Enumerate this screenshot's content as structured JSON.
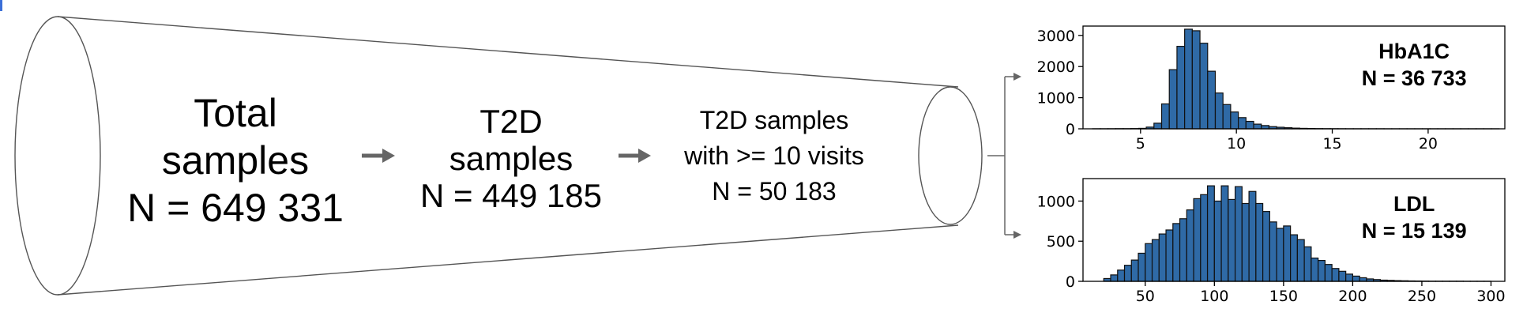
{
  "funnel": {
    "stage1": [
      "Total",
      "samples",
      "N = 649 331"
    ],
    "stage2": [
      "T2D",
      "samples",
      "N = 449 185"
    ],
    "stage3": [
      "T2D samples",
      "with >= 10 visits",
      "N = 50 183"
    ]
  },
  "colors": {
    "bar": "#2f6aa6",
    "arrow": "#666666",
    "outline": "#555555"
  },
  "chart_data": [
    {
      "type": "bar",
      "title": "HbA1C",
      "annotation": "N = 36 733",
      "xlim": [
        2,
        24
      ],
      "ylim": [
        0,
        3300
      ],
      "xticks": [
        5,
        10,
        15,
        20
      ],
      "yticks": [
        0,
        1000,
        2000,
        3000
      ],
      "bin_start": 2.5,
      "bin_width": 0.4,
      "values": [
        2,
        2,
        3,
        5,
        5,
        8,
        15,
        55,
        180,
        800,
        1900,
        2650,
        3200,
        3150,
        2750,
        1850,
        1150,
        780,
        540,
        360,
        240,
        150,
        105,
        70,
        50,
        35,
        22,
        15,
        10,
        7,
        5,
        4,
        3,
        2,
        2,
        2,
        2,
        2,
        1,
        1,
        1,
        1,
        1,
        1,
        1,
        1,
        1,
        1,
        1,
        1,
        1,
        1,
        1
      ]
    },
    {
      "type": "bar",
      "title": "LDL",
      "annotation": "N = 15 139",
      "xlim": [
        5,
        310
      ],
      "ylim": [
        0,
        1280
      ],
      "xticks": [
        50,
        100,
        150,
        200,
        250,
        300
      ],
      "yticks": [
        0,
        500,
        1000
      ],
      "bin_start": 20,
      "bin_width": 5,
      "values": [
        35,
        80,
        140,
        200,
        265,
        350,
        470,
        520,
        590,
        640,
        720,
        780,
        890,
        1030,
        1080,
        1190,
        1000,
        1190,
        1020,
        1180,
        970,
        1120,
        970,
        870,
        740,
        660,
        690,
        580,
        520,
        430,
        290,
        260,
        210,
        160,
        125,
        90,
        65,
        45,
        30,
        22,
        15,
        12,
        9,
        7,
        5,
        4,
        3,
        2,
        2,
        2,
        2,
        2,
        1,
        1,
        1,
        1
      ]
    }
  ]
}
